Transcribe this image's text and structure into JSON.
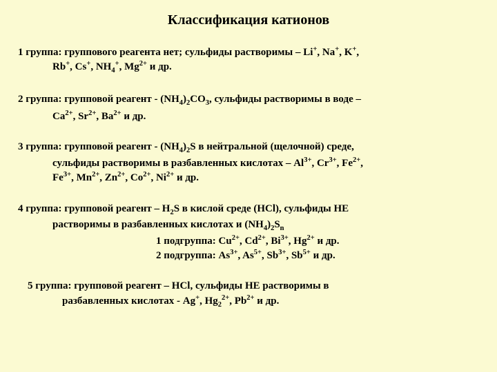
{
  "colors": {
    "background": "#fbfad2",
    "text": "#000000"
  },
  "typography": {
    "fontFamily": "Times New Roman",
    "titleFontSize": 20,
    "bodyFontSize": 15,
    "fontWeight": "bold"
  },
  "title": "Классификация катионов",
  "groups": {
    "g1": {
      "prefix": "1 группа: группового реагента нет; сульфиды растворимы – Li",
      "ions_html": "<sup>+</sup>, Na<sup>+</sup>, K<sup>+</sup>,",
      "line2_html": "Rb<sup>+</sup>, Cs<sup>+</sup>, NH<sub>4</sub><sup>+</sup>, Mg<sup>2+</sup> и др."
    },
    "g2": {
      "prefix": "2 группа: групповой реагент - (NH",
      "mid_html": "<sub>4</sub>)<sub>2</sub>CO<sub>3</sub>, сульфиды растворимы в воде –",
      "line2_html": "Ca<sup>2+</sup>, Sr<sup>2+</sup>, Ba<sup>2+</sup> и др."
    },
    "g3": {
      "prefix": "3 группа: групповой реагент  - (NH",
      "mid_html": "<sub>4</sub>)<sub>2</sub>S в нейтральной (щелочной) среде,",
      "line2_html": "сульфиды растворимы в разбавленных кислотах – Al<sup>3+</sup>, Cr<sup>3+</sup>, Fe<sup>2+</sup>,",
      "line3_html": "Fe<sup>3+</sup>, Mn<sup>2+</sup>, Zn<sup>2+</sup>, Co<sup>2+</sup>, Ni<sup>2+</sup> и др."
    },
    "g4": {
      "prefix": "4 группа: групповой реагент – H",
      "mid_html": "<sub>2</sub>S в кислой среде (HCl), сульфиды НЕ",
      "line2_html": "растворимы в разбавленных кислотах и (NH<sub>4</sub>)<sub>2</sub>S<sub>n</sub>",
      "sub1_html": "1 подгруппа: Cu<sup>2+</sup>, Cd<sup>2+</sup>, Bi<sup>3+</sup>, Hg<sup>2+</sup> и др.",
      "sub2_html": "2 подгруппа: As<sup>3+</sup>, As<sup>5+</sup>, Sb<sup>3+</sup>, Sb<sup>5+</sup> и др."
    },
    "g5": {
      "line1_html": "5 группа: групповой реагент – HCl, сульфиды НЕ растворимы в",
      "line2_html": "разбавленных кислотах - Ag<sup>+</sup>, Hg<sub>2</sub><sup>2+</sup>, Pb<sup>2+</sup> и др."
    }
  }
}
